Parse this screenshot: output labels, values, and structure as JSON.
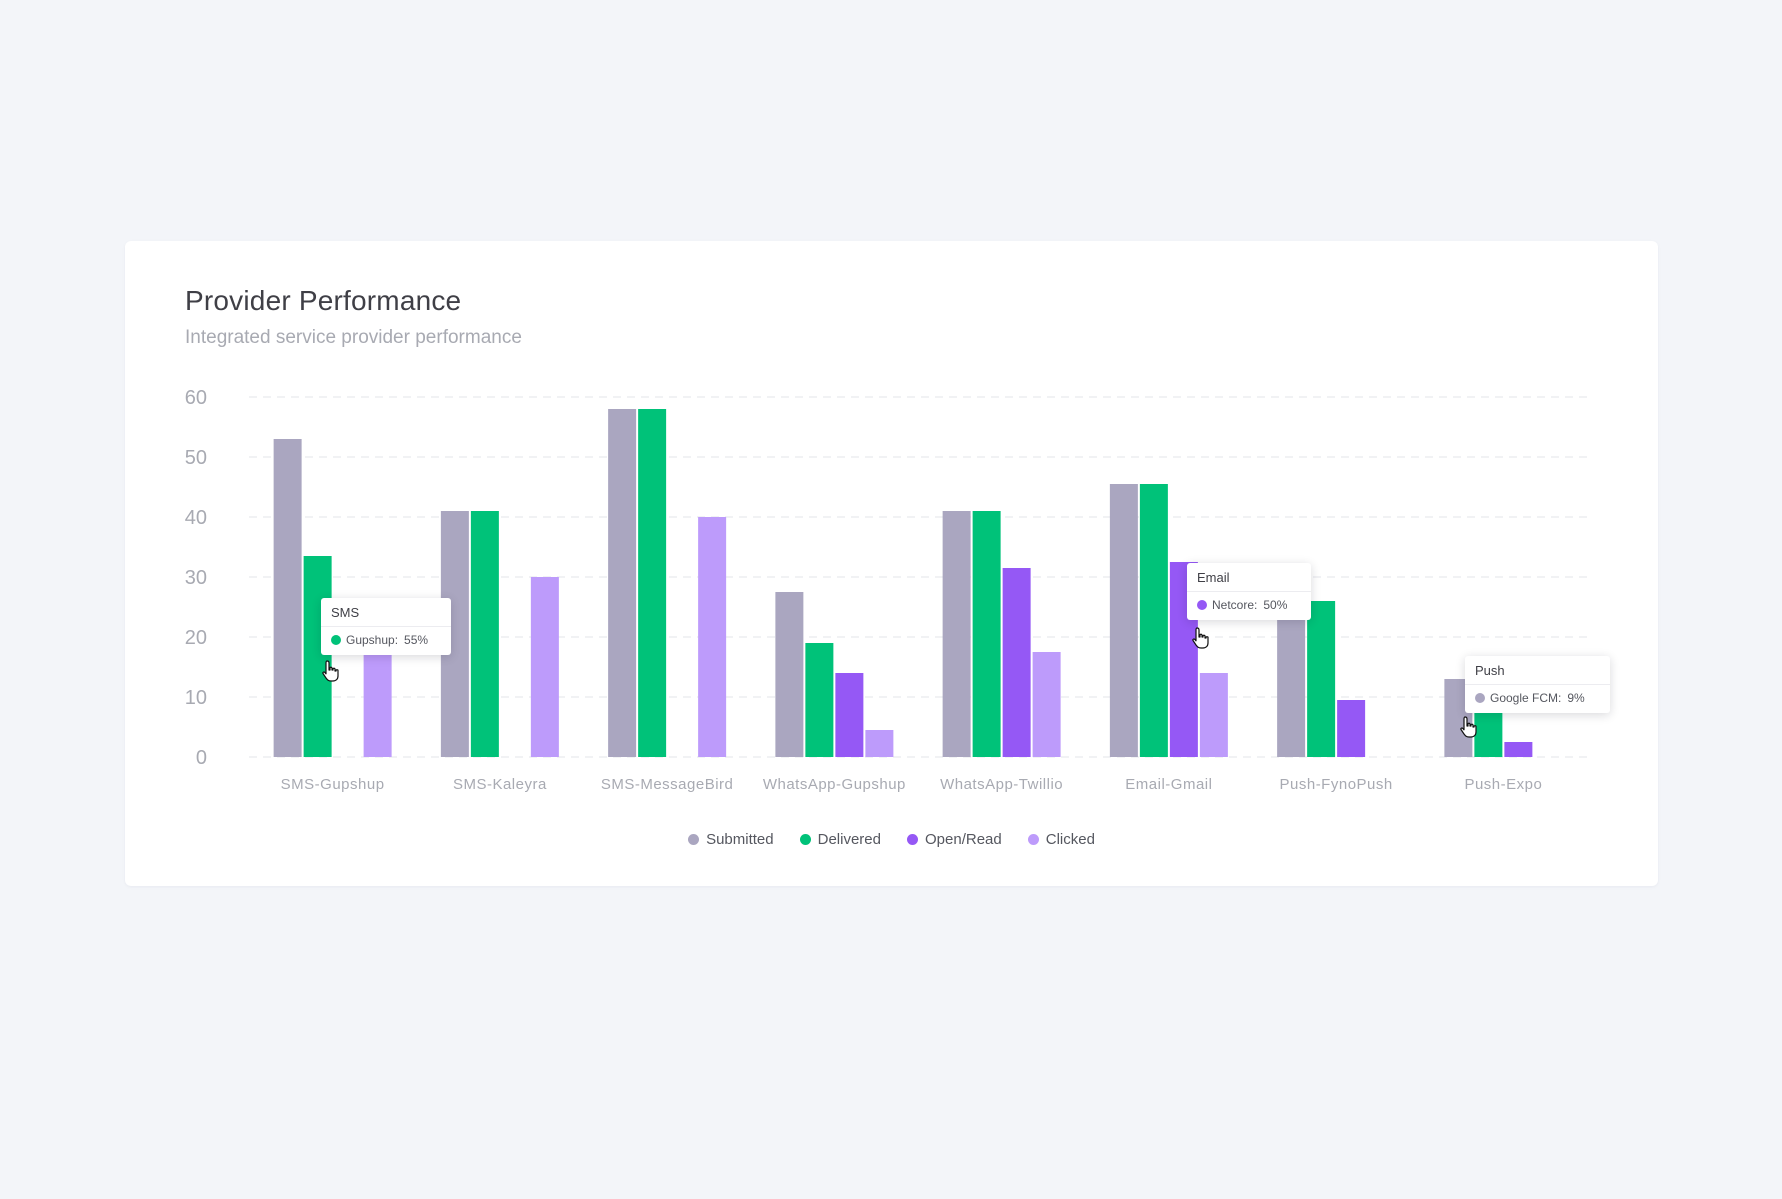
{
  "card": {
    "title": "Provider Performance",
    "subtitle": "Integrated service provider performance"
  },
  "colors": {
    "submitted": "#aaa6c0",
    "delivered": "#00c279",
    "open_read": "#9558f5",
    "clicked": "#bd9bfb",
    "grid": "#e3e4ea",
    "axis_text": "#a8aab2"
  },
  "chart_data": {
    "type": "bar",
    "title": "Provider Performance",
    "subtitle": "Integrated service provider performance",
    "xlabel": "",
    "ylabel": "",
    "ylim": [
      0,
      60
    ],
    "yticks": [
      0,
      10,
      20,
      30,
      40,
      50,
      60
    ],
    "grid": true,
    "legend_position": "bottom-center",
    "categories": [
      "SMS-Gupshup",
      "SMS-Kaleyra",
      "SMS-MessageBird",
      "WhatsApp-Gupshup",
      "WhatsApp-Twillio",
      "Email-Gmail",
      "Push-FynoPush",
      "Push-Expo"
    ],
    "series": [
      {
        "name": "Submitted",
        "values": [
          53,
          41,
          58,
          27.5,
          41,
          45.5,
          26,
          13
        ]
      },
      {
        "name": "Delivered",
        "values": [
          33.5,
          41,
          58,
          19,
          41,
          45.5,
          26,
          8
        ]
      },
      {
        "name": "Open/Read",
        "values": [
          null,
          null,
          null,
          14,
          31.5,
          32.5,
          9.5,
          2.5
        ]
      },
      {
        "name": "Clicked",
        "values": [
          17,
          30,
          40,
          4.5,
          17.5,
          14,
          null,
          null
        ]
      }
    ]
  },
  "tooltips": [
    {
      "title": "SMS",
      "label": "Gupshup:",
      "value": "55%",
      "color": "#00c279"
    },
    {
      "title": "Email",
      "label": "Netcore:",
      "value": "50%",
      "color": "#9558f5"
    },
    {
      "title": "Push",
      "label": "Google FCM:",
      "value": "9%",
      "color": "#aaa6c0"
    }
  ],
  "legend": [
    {
      "label": "Submitted",
      "color": "#aaa6c0"
    },
    {
      "label": "Delivered",
      "color": "#00c279"
    },
    {
      "label": "Open/Read",
      "color": "#9558f5"
    },
    {
      "label": "Clicked",
      "color": "#bd9bfb"
    }
  ]
}
